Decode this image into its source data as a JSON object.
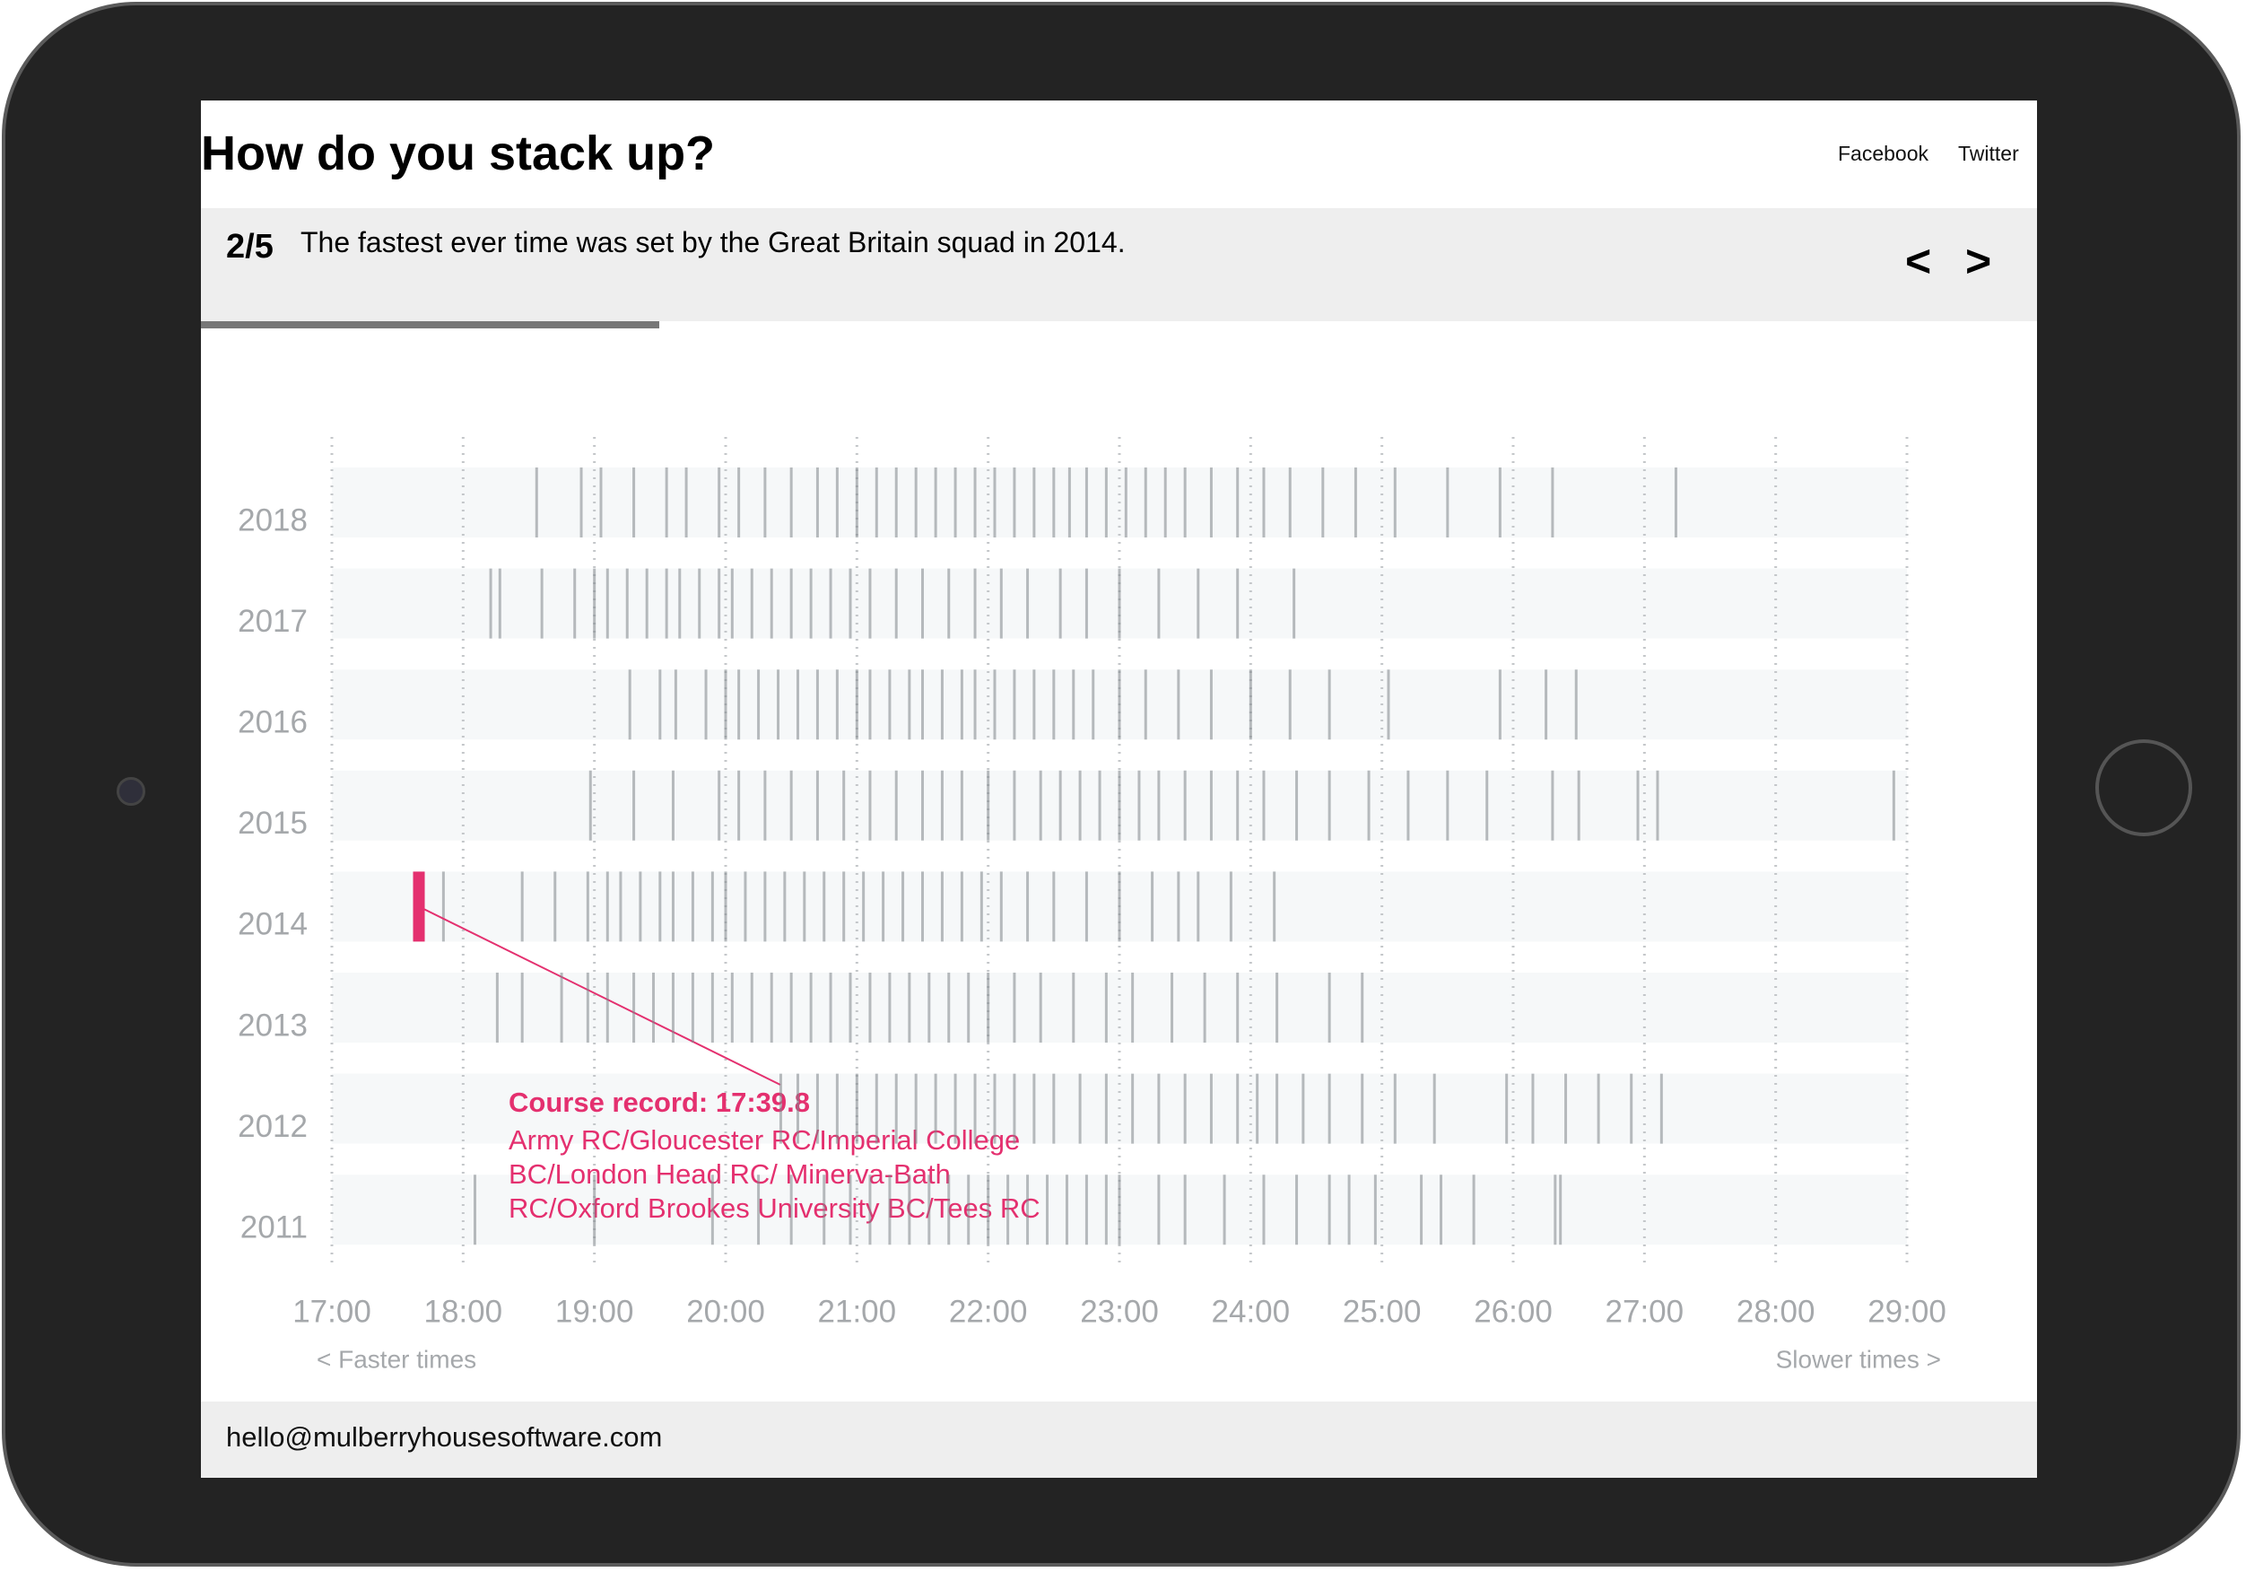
{
  "header": {
    "title": "How do you stack up?",
    "links": [
      "Facebook",
      "Twitter"
    ]
  },
  "step": {
    "counter": "2/5",
    "text": "The fastest ever time was set by the Great Britain squad in 2014.",
    "nav": [
      "<",
      ">"
    ]
  },
  "footer": {
    "email": "hello@mulberryhousesoftware.com"
  },
  "chart_data": {
    "type": "strip",
    "color": "#80858a",
    "grid": true,
    "xlim": [
      17,
      29
    ],
    "xticks": [
      {
        "value": 17,
        "label": "17:00"
      },
      {
        "value": 18,
        "label": "18:00"
      },
      {
        "value": 19,
        "label": "19:00"
      },
      {
        "value": 20,
        "label": "20:00"
      },
      {
        "value": 21,
        "label": "21:00"
      },
      {
        "value": 22,
        "label": "22:00"
      },
      {
        "value": 23,
        "label": "23:00"
      },
      {
        "value": 24,
        "label": "24:00"
      },
      {
        "value": 25,
        "label": "25:00"
      },
      {
        "value": 26,
        "label": "26:00"
      },
      {
        "value": 27,
        "label": "27:00"
      },
      {
        "value": 28,
        "label": "28:00"
      },
      {
        "value": 29,
        "label": "29:00"
      }
    ],
    "x_note_left": "< Faster times",
    "x_note_right": "Slower times >",
    "series": [
      {
        "name": "2018",
        "values": [
          18.56,
          18.9,
          19.05,
          19.3,
          19.55,
          19.7,
          19.95,
          20.1,
          20.3,
          20.5,
          20.7,
          20.85,
          21.0,
          21.15,
          21.3,
          21.45,
          21.6,
          21.75,
          21.9,
          22.05,
          22.2,
          22.35,
          22.5,
          22.62,
          22.75,
          22.9,
          23.05,
          23.2,
          23.35,
          23.5,
          23.7,
          23.9,
          24.1,
          24.3,
          24.55,
          24.8,
          25.1,
          25.5,
          25.9,
          26.3,
          27.24
        ]
      },
      {
        "name": "2017",
        "values": [
          18.21,
          18.28,
          18.6,
          18.85,
          19.0,
          19.1,
          19.25,
          19.4,
          19.55,
          19.65,
          19.8,
          19.95,
          20.05,
          20.2,
          20.35,
          20.5,
          20.65,
          20.8,
          20.95,
          21.1,
          21.3,
          21.5,
          21.7,
          21.9,
          22.1,
          22.3,
          22.55,
          22.75,
          23.0,
          23.3,
          23.6,
          23.9,
          24.33
        ]
      },
      {
        "name": "2016",
        "values": [
          19.27,
          19.5,
          19.62,
          19.85,
          20.0,
          20.1,
          20.25,
          20.4,
          20.55,
          20.7,
          20.85,
          21.0,
          21.1,
          21.25,
          21.4,
          21.5,
          21.65,
          21.8,
          21.9,
          22.05,
          22.2,
          22.35,
          22.5,
          22.65,
          22.8,
          23.0,
          23.2,
          23.45,
          23.7,
          24.0,
          24.3,
          24.6,
          25.05,
          25.9,
          26.25,
          26.48
        ]
      },
      {
        "name": "2015",
        "values": [
          18.97,
          19.3,
          19.6,
          19.95,
          20.1,
          20.3,
          20.5,
          20.7,
          20.9,
          21.1,
          21.3,
          21.5,
          21.65,
          21.8,
          22.0,
          22.2,
          22.4,
          22.55,
          22.7,
          22.85,
          23.0,
          23.15,
          23.3,
          23.5,
          23.7,
          23.9,
          24.1,
          24.35,
          24.6,
          24.9,
          25.2,
          25.5,
          25.8,
          26.3,
          26.5,
          26.95,
          27.1,
          28.9
        ]
      },
      {
        "name": "2014",
        "values": [
          17.85,
          18.45,
          18.7,
          18.95,
          19.1,
          19.2,
          19.35,
          19.5,
          19.6,
          19.75,
          19.9,
          20.0,
          20.15,
          20.3,
          20.45,
          20.6,
          20.75,
          20.9,
          21.05,
          21.2,
          21.35,
          21.5,
          21.65,
          21.8,
          21.95,
          22.1,
          22.3,
          22.5,
          22.75,
          23.0,
          23.25,
          23.45,
          23.6,
          23.85,
          24.18
        ],
        "record": {
          "value": 17.663,
          "color": "#e4306f",
          "label": "Course record: 17:39.8",
          "crew": [
            "Army RC/Gloucester RC/Imperial College",
            "BC/London Head RC/ Minerva-Bath",
            "RC/Oxford Brookes University BC/Tees RC"
          ]
        }
      },
      {
        "name": "2013",
        "values": [
          18.26,
          18.45,
          18.75,
          18.95,
          19.1,
          19.3,
          19.45,
          19.6,
          19.75,
          19.9,
          20.05,
          20.2,
          20.35,
          20.5,
          20.65,
          20.8,
          20.95,
          21.1,
          21.25,
          21.4,
          21.55,
          21.7,
          21.85,
          22.0,
          22.2,
          22.4,
          22.65,
          22.9,
          23.1,
          23.4,
          23.65,
          23.9,
          24.2,
          24.6,
          24.85
        ]
      },
      {
        "name": "2012",
        "values": [
          20.42,
          20.55,
          20.7,
          20.85,
          21.0,
          21.15,
          21.3,
          21.45,
          21.6,
          21.75,
          21.9,
          22.05,
          22.2,
          22.35,
          22.5,
          22.7,
          22.9,
          23.1,
          23.3,
          23.5,
          23.7,
          23.9,
          24.05,
          24.2,
          24.4,
          24.6,
          24.85,
          25.1,
          25.4,
          25.95,
          26.15,
          26.4,
          26.65,
          26.9,
          27.13
        ]
      },
      {
        "name": "2011",
        "values": [
          18.09,
          19.0,
          19.9,
          20.25,
          20.5,
          20.75,
          20.95,
          21.1,
          21.25,
          21.4,
          21.55,
          21.7,
          21.85,
          22.0,
          22.15,
          22.3,
          22.45,
          22.6,
          22.75,
          22.9,
          23.0,
          23.3,
          23.5,
          23.8,
          24.1,
          24.35,
          24.6,
          24.75,
          24.95,
          25.3,
          25.45,
          25.7,
          26.32,
          26.36
        ]
      }
    ]
  }
}
